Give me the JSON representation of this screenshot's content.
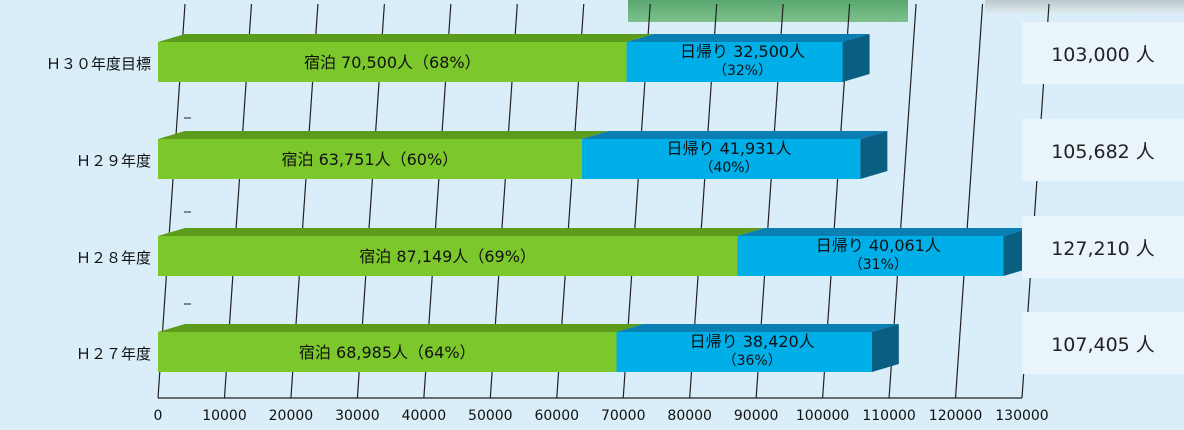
{
  "chart_data": {
    "type": "bar",
    "orientation": "horizontal",
    "stacked": true,
    "categories": [
      "Ｈ３０年度目標",
      "Ｈ２９年度",
      "Ｈ２８年度",
      "Ｈ２７年度"
    ],
    "series": [
      {
        "name": "宿泊",
        "values": [
          70500,
          63751,
          87149,
          68985
        ],
        "labels": [
          "宿泊 70,500人（68%）",
          "宿泊 63,751人（60%）",
          "宿泊 87,149人（69%）",
          "宿泊 68,985人（64%）"
        ]
      },
      {
        "name": "日帰り",
        "values": [
          32500,
          41931,
          40061,
          38420
        ],
        "labels_line1": [
          "日帰り 32,500人",
          "日帰り 41,931人",
          "日帰り 40,061人",
          "日帰り 38,420人"
        ],
        "labels_line2": [
          "（32%）",
          "（40%）",
          "（31%）",
          "（36%）"
        ]
      }
    ],
    "totals": [
      "103,000 人",
      "105,682 人",
      "127,210 人",
      "107,405 人"
    ],
    "xlim": [
      0,
      130000
    ],
    "xticks": [
      0,
      10000,
      20000,
      30000,
      40000,
      50000,
      60000,
      70000,
      80000,
      90000,
      100000,
      110000,
      120000,
      130000
    ],
    "xtick_labels": [
      "0",
      "10000",
      "20000",
      "30000",
      "40000",
      "50000",
      "60000",
      "70000",
      "80000",
      "90000",
      "100000",
      "110000",
      "120000",
      "130000"
    ],
    "grid": true,
    "colors": {
      "stay_front": "#7cc72c",
      "stay_top": "#5b9c1c",
      "day_front": "#00aee8",
      "day_top": "#0a7fb3",
      "day_side": "#0a5e82"
    }
  }
}
